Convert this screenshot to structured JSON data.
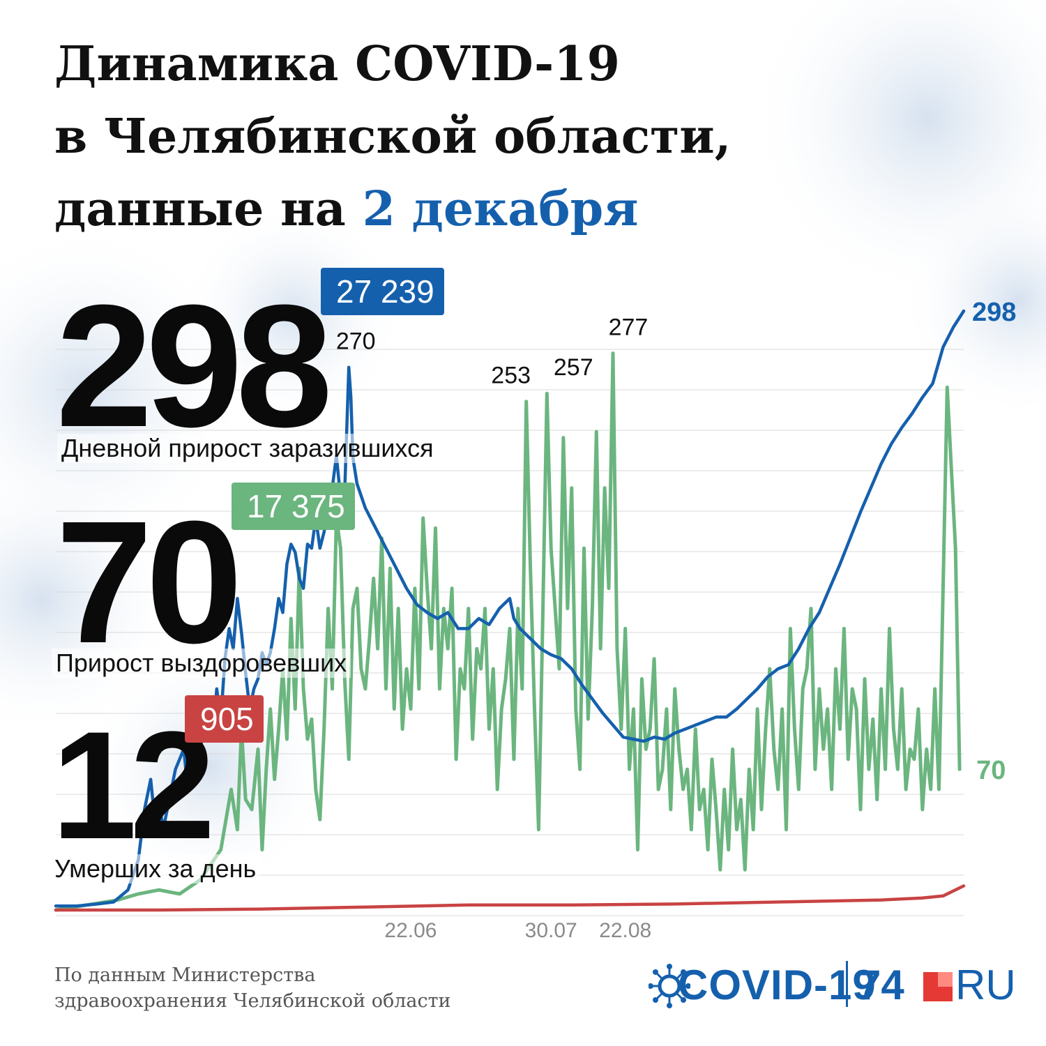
{
  "title": {
    "line1": "Динамика COVID-19",
    "line2": "в Челябинской области,",
    "line3_prefix": "данные на",
    "line3_date": "2 декабря"
  },
  "stats": {
    "infected": {
      "value": "298",
      "label": "Дневной прирост заразившихся",
      "total": "27 239"
    },
    "recovered": {
      "value": "70",
      "label": "Прирост выздоровевших",
      "total": "17 375"
    },
    "deaths": {
      "value": "12",
      "label": "Умерших за день",
      "total": "905"
    }
  },
  "colors": {
    "infected": "#1560ad",
    "recovered": "#6bb57f",
    "deaths": "#c94343"
  },
  "chart_data": {
    "type": "line",
    "x_tick_labels": [
      "22.06",
      "30.07",
      "22.08"
    ],
    "series": [
      {
        "key": "infected",
        "anchors": [
          [
            0,
            2
          ],
          [
            10,
            2
          ],
          [
            20,
            3
          ],
          [
            28,
            4
          ],
          [
            35,
            10
          ],
          [
            40,
            25
          ],
          [
            43,
            50
          ],
          [
            46,
            65
          ],
          [
            48,
            45
          ],
          [
            50,
            55
          ],
          [
            52,
            40
          ],
          [
            55,
            55
          ],
          [
            58,
            70
          ],
          [
            62,
            80
          ],
          [
            64,
            60
          ],
          [
            66,
            90
          ],
          [
            70,
            75
          ],
          [
            72,
            105
          ],
          [
            74,
            100
          ],
          [
            76,
            85
          ],
          [
            78,
            110
          ],
          [
            80,
            95
          ],
          [
            82,
            125
          ],
          [
            84,
            140
          ],
          [
            86,
            130
          ],
          [
            88,
            155
          ],
          [
            90,
            138
          ],
          [
            92,
            118
          ],
          [
            94,
            100
          ],
          [
            96,
            110
          ],
          [
            98,
            115
          ],
          [
            100,
            128
          ],
          [
            102,
            122
          ],
          [
            104,
            128
          ],
          [
            106,
            140
          ],
          [
            108,
            155
          ],
          [
            110,
            148
          ],
          [
            112,
            172
          ],
          [
            114,
            182
          ],
          [
            116,
            178
          ],
          [
            118,
            165
          ],
          [
            120,
            160
          ],
          [
            122,
            182
          ],
          [
            124,
            180
          ],
          [
            126,
            195
          ],
          [
            128,
            180
          ],
          [
            130,
            188
          ],
          [
            132,
            200
          ],
          [
            134,
            210
          ],
          [
            136,
            226
          ],
          [
            138,
            205
          ],
          [
            140,
            208
          ],
          [
            142,
            270
          ],
          [
            143,
            255
          ],
          [
            144,
            225
          ],
          [
            146,
            212
          ],
          [
            150,
            200
          ],
          [
            155,
            190
          ],
          [
            160,
            180
          ],
          [
            165,
            170
          ],
          [
            170,
            160
          ],
          [
            175,
            152
          ],
          [
            180,
            148
          ],
          [
            185,
            145
          ],
          [
            190,
            148
          ],
          [
            195,
            140
          ],
          [
            200,
            140
          ],
          [
            205,
            145
          ],
          [
            210,
            142
          ],
          [
            215,
            150
          ],
          [
            220,
            155
          ],
          [
            222,
            145
          ],
          [
            225,
            140
          ],
          [
            230,
            135
          ],
          [
            235,
            130
          ],
          [
            240,
            127
          ],
          [
            245,
            125
          ],
          [
            250,
            120
          ],
          [
            255,
            112
          ],
          [
            260,
            105
          ],
          [
            265,
            98
          ],
          [
            270,
            92
          ],
          [
            275,
            86
          ],
          [
            280,
            85
          ],
          [
            285,
            84
          ],
          [
            290,
            86
          ],
          [
            295,
            85
          ],
          [
            300,
            88
          ],
          [
            305,
            90
          ],
          [
            310,
            92
          ],
          [
            315,
            94
          ],
          [
            320,
            96
          ],
          [
            325,
            96
          ],
          [
            330,
            100
          ],
          [
            335,
            105
          ],
          [
            340,
            110
          ],
          [
            345,
            116
          ],
          [
            350,
            120
          ],
          [
            355,
            122
          ],
          [
            360,
            130
          ],
          [
            365,
            140
          ],
          [
            370,
            148
          ],
          [
            375,
            160
          ],
          [
            380,
            172
          ],
          [
            385,
            185
          ],
          [
            390,
            198
          ],
          [
            395,
            210
          ],
          [
            400,
            222
          ],
          [
            405,
            232
          ],
          [
            410,
            240
          ],
          [
            415,
            247
          ],
          [
            420,
            255
          ],
          [
            425,
            262
          ],
          [
            430,
            280
          ],
          [
            435,
            290
          ],
          [
            440,
            298
          ]
        ]
      },
      {
        "key": "recovered",
        "anchors": [
          [
            0,
            0
          ],
          [
            30,
            5
          ],
          [
            40,
            8
          ],
          [
            50,
            10
          ],
          [
            60,
            8
          ],
          [
            70,
            15
          ],
          [
            80,
            30
          ],
          [
            85,
            60
          ],
          [
            88,
            40
          ],
          [
            90,
            90
          ],
          [
            92,
            55
          ],
          [
            95,
            50
          ],
          [
            98,
            80
          ],
          [
            100,
            30
          ],
          [
            102,
            70
          ],
          [
            104,
            100
          ],
          [
            106,
            65
          ],
          [
            108,
            90
          ],
          [
            110,
            120
          ],
          [
            112,
            85
          ],
          [
            114,
            145
          ],
          [
            116,
            100
          ],
          [
            118,
            170
          ],
          [
            120,
            110
          ],
          [
            122,
            85
          ],
          [
            124,
            95
          ],
          [
            126,
            60
          ],
          [
            128,
            45
          ],
          [
            130,
            90
          ],
          [
            132,
            150
          ],
          [
            134,
            110
          ],
          [
            136,
            195
          ],
          [
            138,
            180
          ],
          [
            140,
            115
          ],
          [
            142,
            75
          ],
          [
            144,
            150
          ],
          [
            146,
            160
          ],
          [
            148,
            120
          ],
          [
            150,
            110
          ],
          [
            152,
            135
          ],
          [
            154,
            165
          ],
          [
            156,
            130
          ],
          [
            158,
            185
          ],
          [
            160,
            110
          ],
          [
            162,
            170
          ],
          [
            164,
            100
          ],
          [
            166,
            150
          ],
          [
            168,
            90
          ],
          [
            170,
            120
          ],
          [
            172,
            100
          ],
          [
            174,
            160
          ],
          [
            176,
            110
          ],
          [
            178,
            195
          ],
          [
            180,
            160
          ],
          [
            182,
            130
          ],
          [
            184,
            190
          ],
          [
            186,
            110
          ],
          [
            188,
            150
          ],
          [
            190,
            130
          ],
          [
            192,
            160
          ],
          [
            194,
            75
          ],
          [
            196,
            120
          ],
          [
            198,
            110
          ],
          [
            200,
            150
          ],
          [
            202,
            85
          ],
          [
            204,
            130
          ],
          [
            206,
            120
          ],
          [
            208,
            150
          ],
          [
            210,
            90
          ],
          [
            212,
            120
          ],
          [
            214,
            60
          ],
          [
            216,
            100
          ],
          [
            218,
            115
          ],
          [
            220,
            140
          ],
          [
            222,
            75
          ],
          [
            224,
            150
          ],
          [
            226,
            110
          ],
          [
            228,
            253
          ],
          [
            230,
            170
          ],
          [
            232,
            100
          ],
          [
            234,
            40
          ],
          [
            236,
            145
          ],
          [
            238,
            257
          ],
          [
            240,
            180
          ],
          [
            242,
            150
          ],
          [
            244,
            120
          ],
          [
            246,
            235
          ],
          [
            248,
            150
          ],
          [
            250,
            210
          ],
          [
            252,
            100
          ],
          [
            254,
            70
          ],
          [
            256,
            180
          ],
          [
            258,
            95
          ],
          [
            260,
            150
          ],
          [
            262,
            238
          ],
          [
            264,
            130
          ],
          [
            266,
            210
          ],
          [
            268,
            160
          ],
          [
            270,
            277
          ],
          [
            272,
            130
          ],
          [
            274,
            90
          ],
          [
            276,
            140
          ],
          [
            278,
            70
          ],
          [
            280,
            100
          ],
          [
            282,
            30
          ],
          [
            284,
            115
          ],
          [
            286,
            80
          ],
          [
            288,
            90
          ],
          [
            290,
            125
          ],
          [
            292,
            60
          ],
          [
            294,
            70
          ],
          [
            296,
            100
          ],
          [
            298,
            50
          ],
          [
            300,
            110
          ],
          [
            302,
            80
          ],
          [
            304,
            60
          ],
          [
            306,
            70
          ],
          [
            308,
            40
          ],
          [
            310,
            90
          ],
          [
            312,
            50
          ],
          [
            314,
            60
          ],
          [
            316,
            30
          ],
          [
            318,
            75
          ],
          [
            320,
            50
          ],
          [
            322,
            20
          ],
          [
            324,
            60
          ],
          [
            326,
            30
          ],
          [
            328,
            80
          ],
          [
            330,
            40
          ],
          [
            332,
            55
          ],
          [
            334,
            20
          ],
          [
            336,
            70
          ],
          [
            338,
            40
          ],
          [
            340,
            100
          ],
          [
            342,
            50
          ],
          [
            344,
            90
          ],
          [
            346,
            120
          ],
          [
            348,
            80
          ],
          [
            350,
            60
          ],
          [
            352,
            100
          ],
          [
            354,
            40
          ],
          [
            356,
            140
          ],
          [
            358,
            90
          ],
          [
            360,
            60
          ],
          [
            362,
            110
          ],
          [
            364,
            120
          ],
          [
            366,
            150
          ],
          [
            368,
            70
          ],
          [
            370,
            110
          ],
          [
            372,
            80
          ],
          [
            374,
            100
          ],
          [
            376,
            60
          ],
          [
            378,
            120
          ],
          [
            380,
            90
          ],
          [
            382,
            140
          ],
          [
            384,
            75
          ],
          [
            386,
            110
          ],
          [
            388,
            100
          ],
          [
            390,
            50
          ],
          [
            392,
            115
          ],
          [
            394,
            70
          ],
          [
            396,
            95
          ],
          [
            398,
            55
          ],
          [
            400,
            110
          ],
          [
            402,
            70
          ],
          [
            404,
            140
          ],
          [
            406,
            90
          ],
          [
            408,
            70
          ],
          [
            410,
            110
          ],
          [
            412,
            60
          ],
          [
            414,
            80
          ],
          [
            416,
            75
          ],
          [
            418,
            100
          ],
          [
            420,
            50
          ],
          [
            422,
            80
          ],
          [
            424,
            60
          ],
          [
            426,
            110
          ],
          [
            428,
            60
          ],
          [
            430,
            160
          ],
          [
            432,
            260
          ],
          [
            434,
            220
          ],
          [
            436,
            180
          ],
          [
            438,
            70
          ]
        ]
      },
      {
        "key": "deaths",
        "anchors": [
          [
            0,
            0
          ],
          [
            50,
            0
          ],
          [
            100,
            0.5
          ],
          [
            150,
            1.5
          ],
          [
            200,
            2.5
          ],
          [
            250,
            2.5
          ],
          [
            300,
            3
          ],
          [
            350,
            4
          ],
          [
            400,
            5
          ],
          [
            420,
            6
          ],
          [
            430,
            7
          ],
          [
            440,
            12
          ]
        ]
      }
    ],
    "annotations": [
      {
        "text": "270",
        "x": 142,
        "y": 270
      },
      {
        "text": "253",
        "x": 228,
        "y": 253
      },
      {
        "text": "257",
        "x": 238,
        "y": 257
      },
      {
        "text": "277",
        "x": 270,
        "y": 277
      }
    ],
    "end_labels": {
      "infected": "298",
      "recovered": "70"
    },
    "ticks": [
      {
        "text": "22.06",
        "x": 172
      },
      {
        "text": "30.07",
        "x": 240
      },
      {
        "text": "22.08",
        "x": 276
      }
    ],
    "xlim": [
      0,
      440
    ],
    "ylim": [
      0,
      298
    ]
  },
  "footer": {
    "source_line1": "По данным Министерства",
    "source_line2": "здравоохранения Челябинской области",
    "logo_covid": "COVID-19",
    "logo_74": "74",
    "logo_ru": "RU"
  }
}
